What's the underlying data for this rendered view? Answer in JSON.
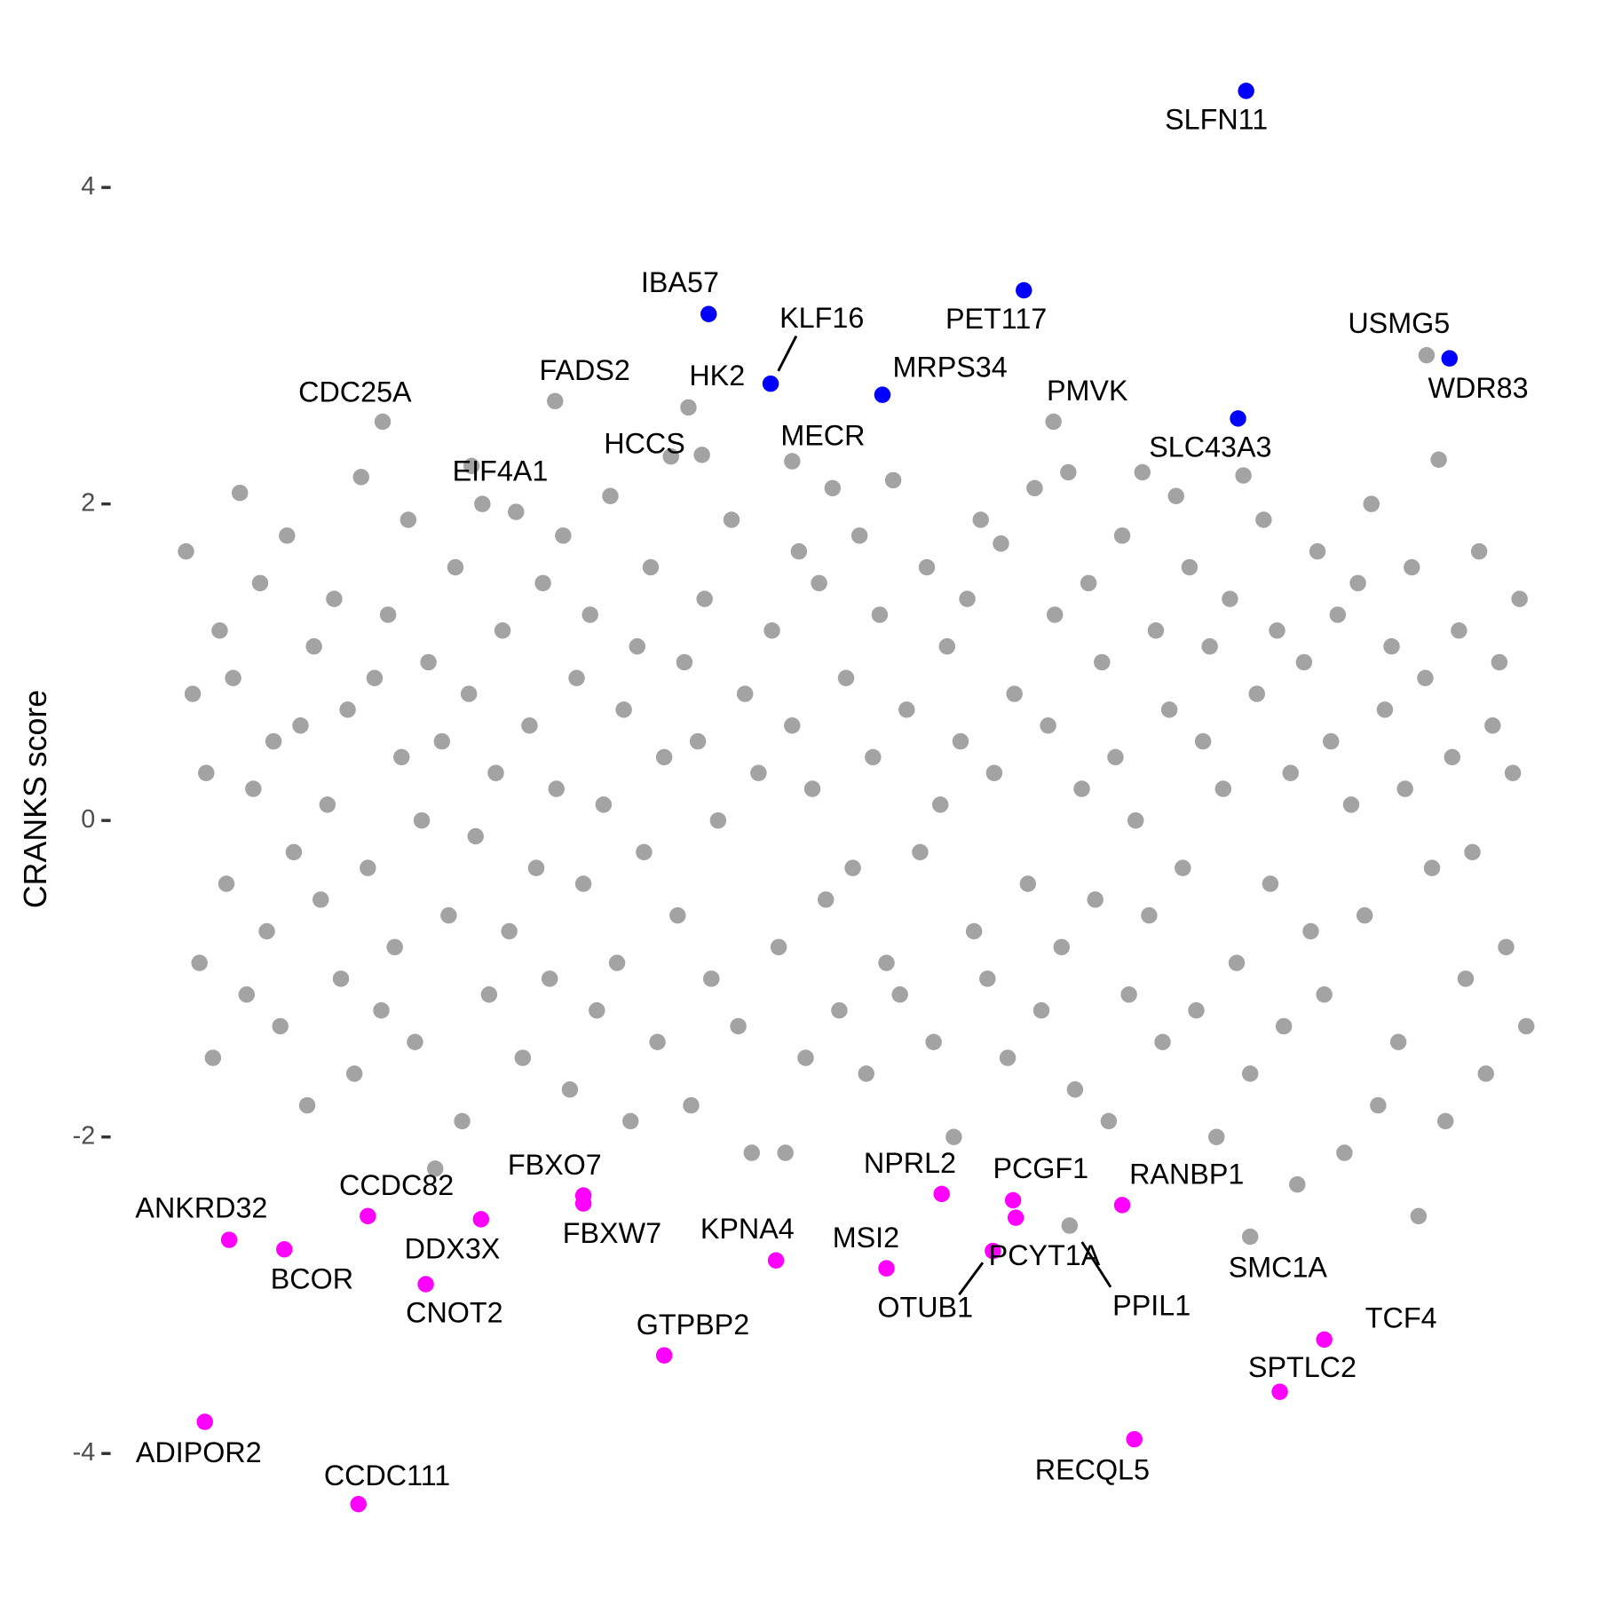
{
  "chart_data": {
    "type": "scatter",
    "y_label": "CRANKS score",
    "xlim": [
      0,
      100
    ],
    "ylim": [
      -4.46,
      4.8
    ],
    "yticks": [
      -4,
      -2,
      0,
      2,
      4
    ],
    "grid": false,
    "series": [
      {
        "color": "#a3a3a3",
        "x": [
          0.5,
          1,
          1.5,
          2,
          2.5,
          3,
          3.5,
          4,
          4.5,
          5,
          5.5,
          6,
          6.5,
          7,
          7.5,
          8,
          8.5,
          9,
          9.5,
          10,
          10.5,
          11,
          11.5,
          12,
          12.5,
          13,
          13.5,
          14,
          14.5,
          15,
          15.5,
          16,
          16.5,
          17,
          17.5,
          18,
          18.5,
          19,
          19.5,
          20,
          20.5,
          21,
          21.5,
          22,
          22.5,
          23,
          23.5,
          24,
          24.5,
          25,
          25.5,
          26,
          26.5,
          27,
          27.5,
          28,
          28.5,
          29,
          29.5,
          30,
          30.5,
          31,
          31.5,
          32,
          32.5,
          33,
          33.5,
          34,
          34.5,
          35,
          35.5,
          36,
          36.5,
          37,
          37.5,
          38,
          38.5,
          39,
          39.5,
          40,
          41,
          41.5,
          42,
          42.5,
          43,
          44,
          44.5,
          45,
          45.5,
          46,
          46.5,
          47,
          47.5,
          48,
          48.5,
          49,
          49.5,
          50,
          50.5,
          51,
          51.5,
          52,
          52.5,
          53,
          53.5,
          54,
          55,
          55.5,
          56,
          56.5,
          57,
          57.5,
          58,
          58.5,
          59,
          59.5,
          60,
          60.5,
          61,
          61.5,
          62,
          63,
          63.5,
          64,
          64.5,
          65,
          65.5,
          66,
          66.5,
          67,
          67.5,
          68,
          68.5,
          69,
          69.5,
          70,
          70.5,
          71,
          71.5,
          72,
          72.5,
          73,
          73.5,
          74,
          74.5,
          75,
          75.5,
          76,
          76.5,
          77,
          77.5,
          78,
          78.5,
          79,
          79.5,
          80,
          80.5,
          81,
          81.5,
          82,
          82.5,
          83,
          83.5,
          84,
          84.5,
          85,
          85.5,
          86,
          86.5,
          87,
          87.5,
          88,
          88.5,
          89,
          89.5,
          90,
          90.5,
          91,
          91.5,
          92,
          92.5,
          93,
          93.5,
          94,
          94.5,
          95,
          95.5,
          96,
          96.5,
          97,
          97.5,
          98,
          98.5,
          99,
          99.5,
          100
        ],
        "y": [
          1.7,
          0.8,
          -0.9,
          0.3,
          -1.5,
          1.2,
          -0.4,
          0.9,
          2.07,
          -1.1,
          0.2,
          1.5,
          -0.7,
          0.5,
          -1.3,
          1.8,
          -0.2,
          0.6,
          -1.8,
          1.1,
          -0.5,
          0.1,
          1.4,
          -1.0,
          0.7,
          -1.6,
          2.17,
          -0.3,
          0.9,
          -1.2,
          1.3,
          -0.8,
          0.4,
          1.9,
          -1.4,
          0.0,
          1.0,
          -2.2,
          0.5,
          -0.6,
          1.6,
          -1.9,
          0.8,
          -0.1,
          2.0,
          -1.1,
          0.3,
          1.2,
          -0.7,
          1.95,
          -1.5,
          0.6,
          -0.3,
          1.5,
          -1.0,
          0.2,
          1.8,
          -1.7,
          0.9,
          -0.4,
          1.3,
          -1.2,
          0.1,
          2.05,
          -0.9,
          0.7,
          -1.9,
          1.1,
          -0.2,
          1.6,
          -1.4,
          0.4,
          2.3,
          -0.6,
          1.0,
          -1.8,
          0.5,
          1.4,
          -1.0,
          0.0,
          1.9,
          -1.3,
          0.8,
          -2.1,
          0.3,
          1.2,
          -0.8,
          -2.1,
          0.6,
          1.7,
          -1.5,
          0.2,
          1.5,
          -0.5,
          2.1,
          -1.2,
          0.9,
          -0.3,
          1.8,
          -1.6,
          0.4,
          1.3,
          -0.9,
          2.15,
          -1.1,
          0.7,
          -0.2,
          1.6,
          -1.4,
          0.1,
          1.1,
          -2.0,
          0.5,
          1.4,
          -0.7,
          1.9,
          -1.0,
          0.3,
          1.75,
          -1.5,
          0.8,
          -0.4,
          2.1,
          -1.2,
          0.6,
          1.3,
          -0.8,
          2.2,
          -1.7,
          0.2,
          1.5,
          -0.5,
          1.0,
          -1.9,
          0.4,
          1.8,
          -1.1,
          0.0,
          2.2,
          -0.6,
          1.2,
          -1.4,
          0.7,
          2.05,
          -0.3,
          1.6,
          -1.2,
          0.5,
          1.1,
          -2.0,
          0.2,
          1.4,
          -0.9,
          2.18,
          -1.6,
          0.8,
          1.9,
          -0.4,
          1.2,
          -1.3,
          0.3,
          -2.3,
          1.0,
          -0.7,
          1.7,
          -1.1,
          0.5,
          1.3,
          -2.1,
          0.1,
          1.5,
          -0.6,
          2.0,
          -1.8,
          0.7,
          1.1,
          -1.4,
          0.2,
          1.6,
          -2.5,
          0.9,
          -0.3,
          2.28,
          -1.9,
          0.4,
          1.2,
          -1.0,
          -0.2,
          1.7,
          -1.6,
          0.6,
          1.0,
          -0.8,
          0.3,
          1.4,
          -1.3
        ]
      },
      {
        "color": "#a3a3a3",
        "x": [
          92.6,
          15.1,
          27.9,
          37.8,
          38.8,
          45.5,
          64.9,
          21.7,
          66.1,
          79.5
        ],
        "y": [
          2.94,
          2.52,
          2.65,
          2.61,
          2.31,
          2.27,
          2.52,
          2.24,
          -2.56,
          -2.63
        ],
        "labels": [
          "USMG5",
          "CDC25A",
          "FADS2",
          "HK2",
          "HCCS",
          "MECR",
          "PMVK",
          "EIF4A1",
          "PPIL1",
          "SMC1A"
        ]
      },
      {
        "color": "#0000ff",
        "x": [
          79.2,
          39.3,
          43.9,
          62.7,
          52.2,
          78.6,
          94.3
        ],
        "y": [
          4.61,
          3.2,
          2.76,
          3.35,
          2.69,
          2.54,
          2.92
        ],
        "labels": [
          "SLFN11",
          "IBA57",
          "KLF16",
          "PET117",
          "MRPS34",
          "SLC43A3",
          "WDR83"
        ]
      },
      {
        "color": "#ff00ff",
        "x": [
          3.7,
          7.8,
          14.0,
          22.4,
          18.3,
          30.0,
          30.0,
          44.3,
          36.0,
          56.6,
          52.5,
          61.9,
          62.1,
          60.4,
          70.0,
          85.0,
          81.7,
          70.9,
          1.9,
          13.3
        ],
        "y": [
          -2.65,
          -2.71,
          -2.5,
          -2.52,
          -2.93,
          -2.37,
          -2.42,
          -2.78,
          -3.38,
          -2.36,
          -2.83,
          -2.4,
          -2.51,
          -2.72,
          -2.43,
          -3.28,
          -3.61,
          -3.91,
          -3.8,
          -4.32
        ],
        "labels": [
          "ANKRD32",
          "BCOR",
          "CCDC82",
          "DDX3X",
          "CNOT2",
          "FBXO7",
          "FBXW7",
          "KPNA4",
          "GTPBP2",
          "NPRL2",
          "MSI2",
          "PCGF1",
          "PCYT1A",
          "OTUB1",
          "RANBP1",
          "TCF4",
          "SPTLC2",
          "RECQL5",
          "ADIPOR2",
          "CCDC111"
        ]
      }
    ]
  }
}
